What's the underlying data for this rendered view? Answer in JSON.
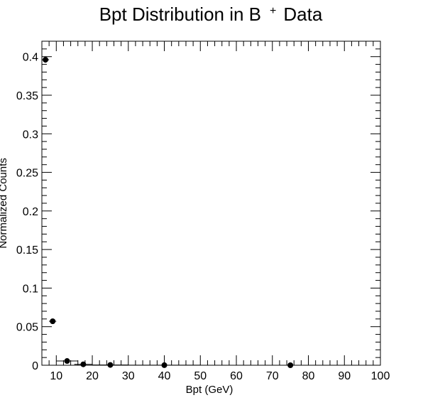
{
  "chart_data": {
    "type": "scatter",
    "title": {
      "main": "Bpt Distribution in B",
      "superscript": "+",
      "suffix": "Data"
    },
    "xlabel": "Bpt (GeV)",
    "ylabel": "Normalized Counts",
    "xlim": [
      6,
      100
    ],
    "ylim": [
      0,
      0.42
    ],
    "x_ticks": [
      10,
      20,
      30,
      40,
      50,
      60,
      70,
      80,
      90,
      100
    ],
    "x_tick_labels": [
      "10",
      "20",
      "30",
      "40",
      "50",
      "60",
      "70",
      "80",
      "90",
      "100"
    ],
    "y_ticks": [
      0,
      0.05,
      0.1,
      0.15,
      0.2,
      0.25,
      0.3,
      0.35,
      0.4
    ],
    "y_tick_labels": [
      "0",
      "0.05",
      "0.1",
      "0.15",
      "0.2",
      "0.25",
      "0.3",
      "0.35",
      "0.4"
    ],
    "grid": false,
    "legend": "none",
    "series": [
      {
        "color": "#000000",
        "points": [
          {
            "x": 7,
            "y": 0.396,
            "xerr": 1,
            "yerr": 0.004
          },
          {
            "x": 9,
            "y": 0.057,
            "xerr": 1,
            "yerr": 0.002
          },
          {
            "x": 13,
            "y": 0.0055,
            "xerr": 3,
            "yerr": 0.0005
          },
          {
            "x": 17.5,
            "y": 0.0012,
            "xerr": 2.5,
            "yerr": 0.0002
          },
          {
            "x": 25,
            "y": 0.0004,
            "xerr": 5,
            "yerr": 0.0001
          },
          {
            "x": 40,
            "y": 0.0001,
            "xerr": 10,
            "yerr": 5e-05
          },
          {
            "x": 75,
            "y": 0.0,
            "xerr": 25,
            "yerr": 2e-05
          }
        ]
      }
    ]
  }
}
